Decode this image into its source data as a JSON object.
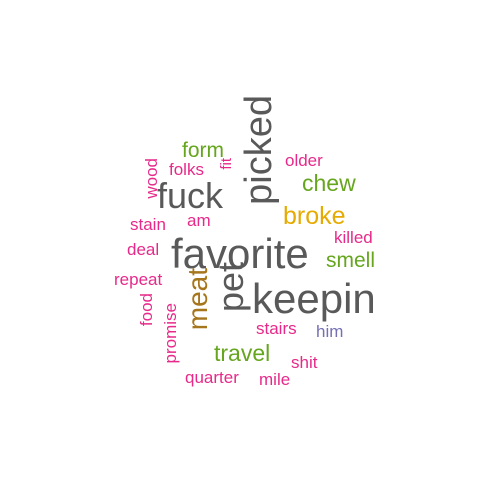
{
  "colors": {
    "dark_gray": "#595959",
    "magenta": "#e7298a",
    "green": "#66a61e",
    "gold": "#e6ab02",
    "brown": "#a6761d",
    "purple": "#7570b3"
  },
  "words": [
    {
      "text": "favorite",
      "color": "#595959",
      "vertical": false
    },
    {
      "text": "keepin",
      "color": "#595959",
      "vertical": false
    },
    {
      "text": "picked",
      "color": "#595959",
      "vertical": true
    },
    {
      "text": "fuck",
      "color": "#595959",
      "vertical": false
    },
    {
      "text": "pet",
      "color": "#595959",
      "vertical": true
    },
    {
      "text": "meat",
      "color": "#a6761d",
      "vertical": true
    },
    {
      "text": "broke",
      "color": "#e6ab02",
      "vertical": false
    },
    {
      "text": "chew",
      "color": "#66a61e",
      "vertical": false
    },
    {
      "text": "travel",
      "color": "#66a61e",
      "vertical": false
    },
    {
      "text": "smell",
      "color": "#66a61e",
      "vertical": false
    },
    {
      "text": "form",
      "color": "#66a61e",
      "vertical": false
    },
    {
      "text": "older",
      "color": "#e7298a",
      "vertical": false
    },
    {
      "text": "killed",
      "color": "#e7298a",
      "vertical": false
    },
    {
      "text": "folks",
      "color": "#e7298a",
      "vertical": false
    },
    {
      "text": "fit",
      "color": "#e7298a",
      "vertical": true
    },
    {
      "text": "wood",
      "color": "#e7298a",
      "vertical": true
    },
    {
      "text": "am",
      "color": "#e7298a",
      "vertical": false
    },
    {
      "text": "stain",
      "color": "#e7298a",
      "vertical": false
    },
    {
      "text": "deal",
      "color": "#e7298a",
      "vertical": false
    },
    {
      "text": "repeat",
      "color": "#e7298a",
      "vertical": false
    },
    {
      "text": "food",
      "color": "#e7298a",
      "vertical": true
    },
    {
      "text": "promise",
      "color": "#e7298a",
      "vertical": true
    },
    {
      "text": "stairs",
      "color": "#e7298a",
      "vertical": false
    },
    {
      "text": "him",
      "color": "#7570b3",
      "vertical": false
    },
    {
      "text": "shit",
      "color": "#e7298a",
      "vertical": false
    },
    {
      "text": "quarter",
      "color": "#e7298a",
      "vertical": false
    },
    {
      "text": "mile",
      "color": "#e7298a",
      "vertical": false
    }
  ]
}
